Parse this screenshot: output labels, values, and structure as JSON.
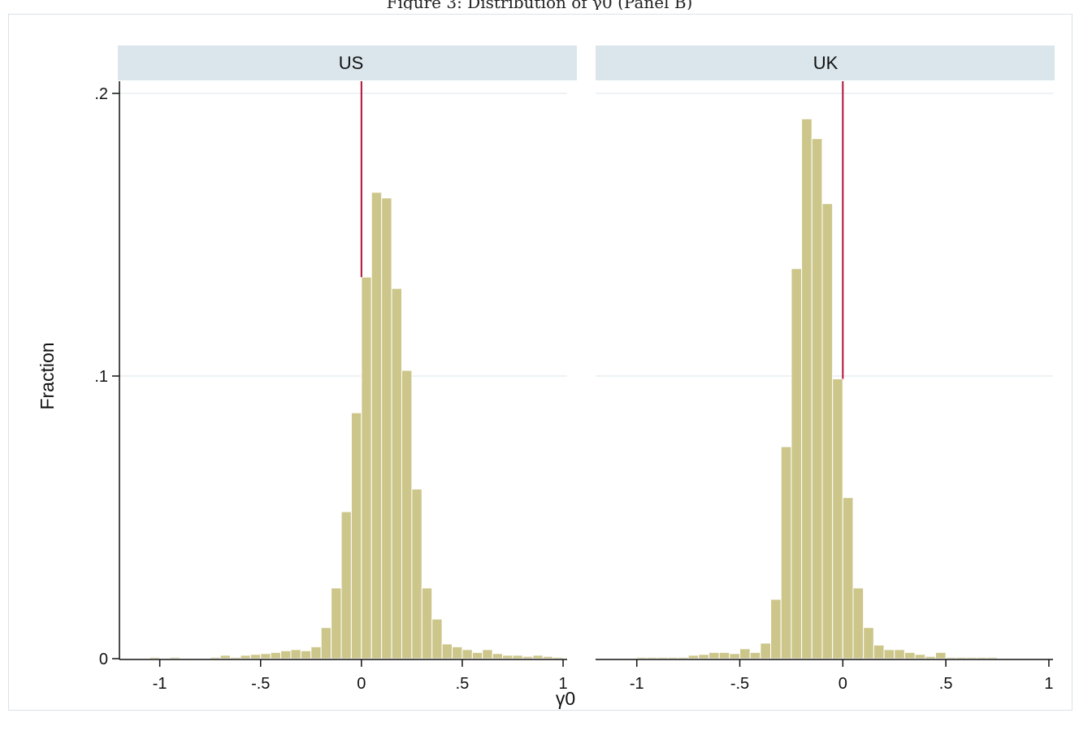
{
  "figure": {
    "top_caption": "Figure 3: Distribution of γ0 (Panel B)"
  },
  "colors": {
    "bar_fill": "#cdc68a",
    "bar_stroke": "#ffffff",
    "strip_bg": "#dbe6ec",
    "gridline": "#e7eef2",
    "ref_line": "#b0103a",
    "frame": "#d8e3ea",
    "axis": "#111111"
  },
  "chart_data": [
    {
      "type": "bar",
      "panel": "US",
      "xlabel": "γ0",
      "ylabel": "Fraction",
      "xlim": [
        -1.2,
        1.02
      ],
      "ylim": [
        0,
        0.2
      ],
      "xticks": [
        -1,
        -0.5,
        0,
        0.5,
        1
      ],
      "xtick_labels": [
        "-1",
        "-.5",
        "0",
        ".5",
        "1"
      ],
      "yticks": [
        0,
        0.1,
        0.2
      ],
      "ytick_labels": [
        "0",
        ".1",
        ".2"
      ],
      "grid": true,
      "bin_width": 0.05,
      "reference_line_x": 0.0,
      "bin_starts": [
        -1.05,
        -1.0,
        -0.95,
        -0.9,
        -0.85,
        -0.8,
        -0.75,
        -0.7,
        -0.65,
        -0.6,
        -0.55,
        -0.5,
        -0.45,
        -0.4,
        -0.35,
        -0.3,
        -0.25,
        -0.2,
        -0.15,
        -0.1,
        -0.05,
        0.0,
        0.05,
        0.1,
        0.15,
        0.2,
        0.25,
        0.3,
        0.35,
        0.4,
        0.45,
        0.5,
        0.55,
        0.6,
        0.65,
        0.7,
        0.75,
        0.8,
        0.85,
        0.9,
        0.95
      ],
      "values": [
        0.0005,
        0.0002,
        0.0005,
        0.0002,
        0.0002,
        0.0002,
        0.0005,
        0.0012,
        0.0005,
        0.0012,
        0.0015,
        0.0018,
        0.0022,
        0.0028,
        0.0032,
        0.0028,
        0.0042,
        0.011,
        0.025,
        0.052,
        0.087,
        0.135,
        0.165,
        0.163,
        0.131,
        0.102,
        0.06,
        0.025,
        0.014,
        0.0052,
        0.0042,
        0.0032,
        0.0022,
        0.0032,
        0.0018,
        0.0012,
        0.0012,
        0.0008,
        0.0012,
        0.0008,
        0.0005
      ]
    },
    {
      "type": "bar",
      "panel": "UK",
      "xlabel": "γ0",
      "ylabel": "Fraction",
      "xlim": [
        -1.2,
        1.02
      ],
      "ylim": [
        0,
        0.2
      ],
      "xticks": [
        -1,
        -0.5,
        0,
        0.5,
        1
      ],
      "xtick_labels": [
        "-1",
        "-.5",
        "0",
        ".5",
        "1"
      ],
      "yticks": [
        0,
        0.1,
        0.2
      ],
      "ytick_labels": [
        "0",
        ".1",
        ".2"
      ],
      "grid": true,
      "bin_width": 0.05,
      "reference_line_x": 0.0,
      "bin_starts": [
        -1.0,
        -0.95,
        -0.9,
        -0.85,
        -0.8,
        -0.75,
        -0.7,
        -0.65,
        -0.6,
        -0.55,
        -0.5,
        -0.45,
        -0.4,
        -0.35,
        -0.3,
        -0.25,
        -0.2,
        -0.15,
        -0.1,
        -0.05,
        0.0,
        0.05,
        0.1,
        0.15,
        0.2,
        0.25,
        0.3,
        0.35,
        0.4,
        0.45,
        0.5,
        0.55,
        0.6,
        0.65,
        0.7
      ],
      "values": [
        0.0005,
        0.0005,
        0.0005,
        0.0005,
        0.0005,
        0.0012,
        0.0015,
        0.0022,
        0.0022,
        0.0018,
        0.0035,
        0.0022,
        0.0055,
        0.021,
        0.075,
        0.138,
        0.191,
        0.184,
        0.161,
        0.099,
        0.057,
        0.025,
        0.011,
        0.0048,
        0.0032,
        0.0032,
        0.0022,
        0.0015,
        0.0008,
        0.0022,
        0.0005,
        0.0005,
        0.0005,
        0.0005,
        0.0005
      ]
    }
  ]
}
